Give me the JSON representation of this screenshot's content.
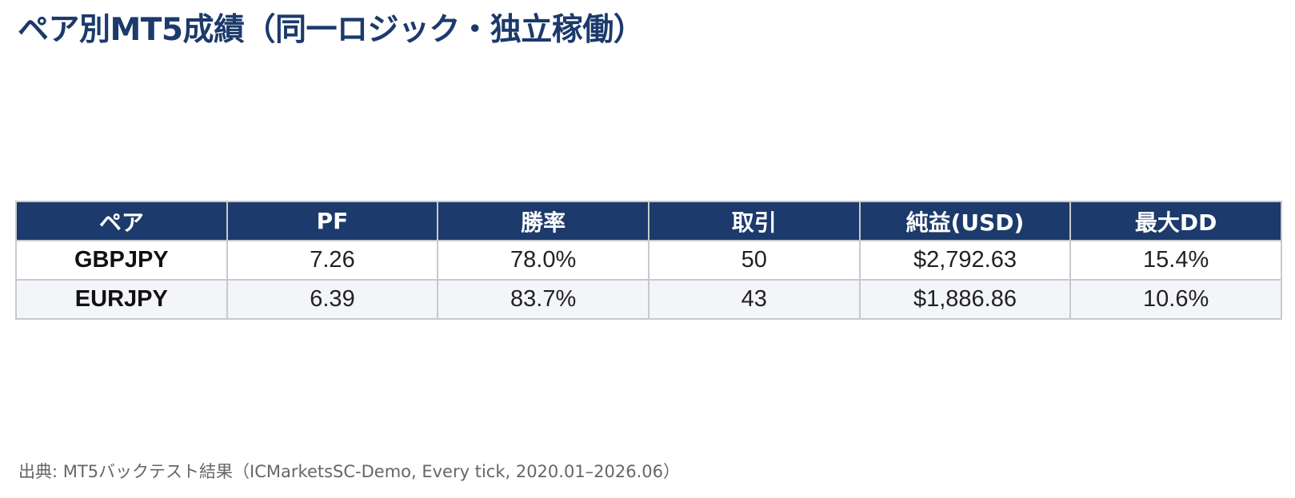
{
  "title": "ペア別MT5成績（同一ロジック・独立稼働）",
  "table": {
    "headers": [
      "ペア",
      "PF",
      "勝率",
      "取引",
      "純益(USD)",
      "最大DD"
    ],
    "rows": [
      [
        "GBPJPY",
        "7.26",
        "78.0%",
        "50",
        "$2,792.63",
        "15.4%"
      ],
      [
        "EURJPY",
        "6.39",
        "83.7%",
        "43",
        "$1,886.86",
        "10.6%"
      ]
    ]
  },
  "source": "出典: MT5バックテスト結果（ICMarketsSC-Demo, Every tick, 2020.01–2026.06）",
  "colors": {
    "header_bg": "#1c3a6b",
    "title_color": "#1c3a6b",
    "border": "#c8c9cc",
    "alt_row": "#f3f5f9"
  }
}
